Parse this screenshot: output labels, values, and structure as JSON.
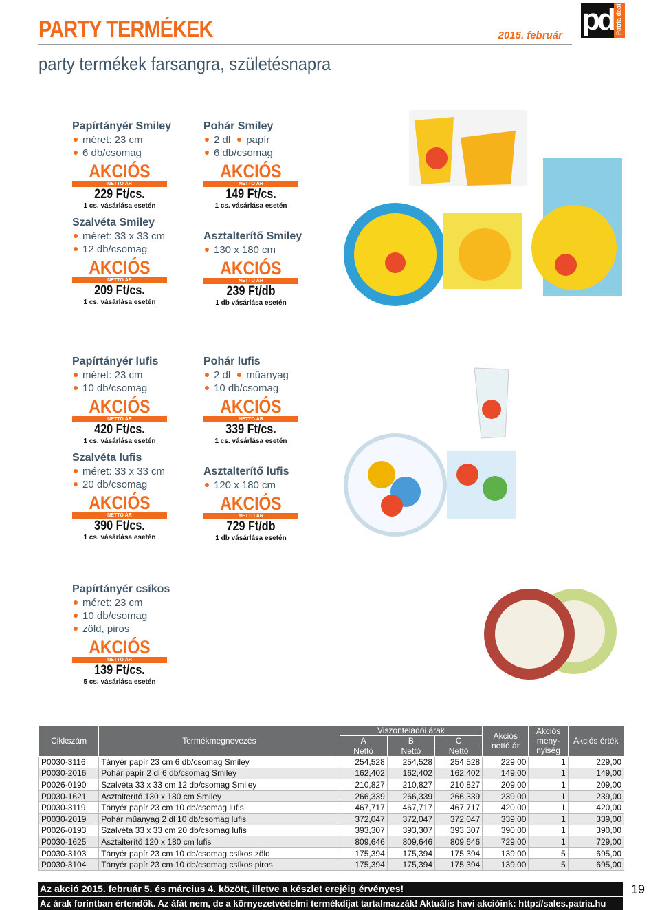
{
  "header": {
    "title": "PARTY TERMÉKEK",
    "subtitle": "party termékek farsangra, születésnapra",
    "date": "2015. február",
    "logo": "pd",
    "logo_brand": "Patria deal"
  },
  "badge": {
    "label": "AKCIÓS",
    "sub": "NETTÓ ÁR"
  },
  "products": [
    {
      "name": "Papírtányér Smiley",
      "bullets": [
        [
          "méret: 23 cm"
        ],
        [
          "6 db/csomag"
        ]
      ],
      "price": "229 Ft/cs.",
      "note": "1 cs. vásárlása esetén"
    },
    {
      "name": "Pohár Smiley",
      "bullets": [
        [
          "2 dl",
          "papír"
        ],
        [
          "6 db/csomag"
        ]
      ],
      "price": "149 Ft/cs.",
      "note": "1 cs. vásárlása esetén"
    },
    {
      "name": "Szalvéta Smiley",
      "bullets": [
        [
          "méret: 33 x 33 cm"
        ],
        [
          "12 db/csomag"
        ]
      ],
      "price": "209 Ft/cs.",
      "note": "1 cs. vásárlása esetén"
    },
    {
      "name": "Asztalterítő Smiley",
      "bullets": [
        [
          "130 x 180 cm"
        ]
      ],
      "price": "239 Ft/db",
      "note": "1 db vásárlása esetén"
    },
    {
      "name": "Papírtányér lufis",
      "bullets": [
        [
          "méret: 23 cm"
        ],
        [
          "10 db/csomag"
        ]
      ],
      "price": "420 Ft/cs.",
      "note": "1 cs. vásárlása esetén"
    },
    {
      "name": "Pohár lufis",
      "bullets": [
        [
          "2 dl",
          "műanyag"
        ],
        [
          "10 db/csomag"
        ]
      ],
      "price": "339 Ft/cs.",
      "note": "1 cs. vásárlása esetén"
    },
    {
      "name": "Szalvéta lufis",
      "bullets": [
        [
          "méret: 33 x 33 cm"
        ],
        [
          "20 db/csomag"
        ]
      ],
      "price": "390 Ft/cs.",
      "note": "1 cs. vásárlása esetén"
    },
    {
      "name": "Asztalterítő lufis",
      "bullets": [
        [
          "120 x 180 cm"
        ]
      ],
      "price": "729 Ft/db",
      "note": "1 db vásárlása esetén"
    },
    {
      "name": "Papírtányér csíkos",
      "bullets": [
        [
          "méret: 23 cm"
        ],
        [
          "10 db/csomag"
        ],
        [
          "zöld, piros"
        ]
      ],
      "price": "139 Ft/cs.",
      "note": "5 cs. vásárlása esetén"
    }
  ],
  "table": {
    "headers": {
      "code": "Cikkszám",
      "name": "Termékmegnevezés",
      "group": "Viszonteladói árak",
      "price_columns": [
        {
          "letter": "A",
          "sub": "Nettó"
        },
        {
          "letter": "B",
          "sub": "Nettó"
        },
        {
          "letter": "C",
          "sub": "Nettó"
        }
      ],
      "promo_price": [
        "Akciós",
        "nettó ár"
      ],
      "promo_qty": [
        "Akciós",
        "meny-",
        "nyiség"
      ],
      "promo_value": "Akciós érték"
    },
    "rows": [
      [
        "P0030-3116",
        "Tányér papír 23 cm 6 db/csomag Smiley",
        "254,528",
        "254,528",
        "254,528",
        "229,00",
        "1",
        "229,00"
      ],
      [
        "P0030-2016",
        "Pohár papír 2 dl 6 db/csomag Smiley",
        "162,402",
        "162,402",
        "162,402",
        "149,00",
        "1",
        "149,00"
      ],
      [
        "P0026-0190",
        "Szalvéta 33 x 33 cm 12 db/csomag Smiley",
        "210,827",
        "210,827",
        "210,827",
        "209,00",
        "1",
        "209,00"
      ],
      [
        "P0030-1621",
        "Asztalterítő 130 x 180 cm Smiley",
        "266,339",
        "266,339",
        "266,339",
        "239,00",
        "1",
        "239,00"
      ],
      [
        "P0030-3119",
        "Tányér papír 23 cm 10 db/csomag lufis",
        "467,717",
        "467,717",
        "467,717",
        "420,00",
        "1",
        "420,00"
      ],
      [
        "P0030-2019",
        "Pohár műanyag 2 dl 10 db/csomag lufis",
        "372,047",
        "372,047",
        "372,047",
        "339,00",
        "1",
        "339,00"
      ],
      [
        "P0026-0193",
        "Szalvéta 33 x 33 cm 20 db/csomag lufis",
        "393,307",
        "393,307",
        "393,307",
        "390,00",
        "1",
        "390,00"
      ],
      [
        "P0030-1625",
        "Asztalterítő 120 x 180 cm lufis",
        "809,646",
        "809,646",
        "809,646",
        "729,00",
        "1",
        "729,00"
      ],
      [
        "P0030-3103",
        "Tányér papír 23 cm 10 db/csomag csíkos zöld",
        "175,394",
        "175,394",
        "175,394",
        "139,00",
        "5",
        "695,00"
      ],
      [
        "P0030-3104",
        "Tányér papír 23 cm 10 db/csomag csíkos piros",
        "175,394",
        "175,394",
        "175,394",
        "139,00",
        "5",
        "695,00"
      ]
    ]
  },
  "footer": {
    "validity": "Az akció 2015. február 5. és március 4. között, illetve a készlet erejéig érvényes!",
    "info": "Az árak forintban értendők. Az áfát nem, de a környezetvédelmi termékdíjat tartalmazzák! Aktuális havi akcióink: http://sales.patria.hu",
    "page_number": "19"
  }
}
